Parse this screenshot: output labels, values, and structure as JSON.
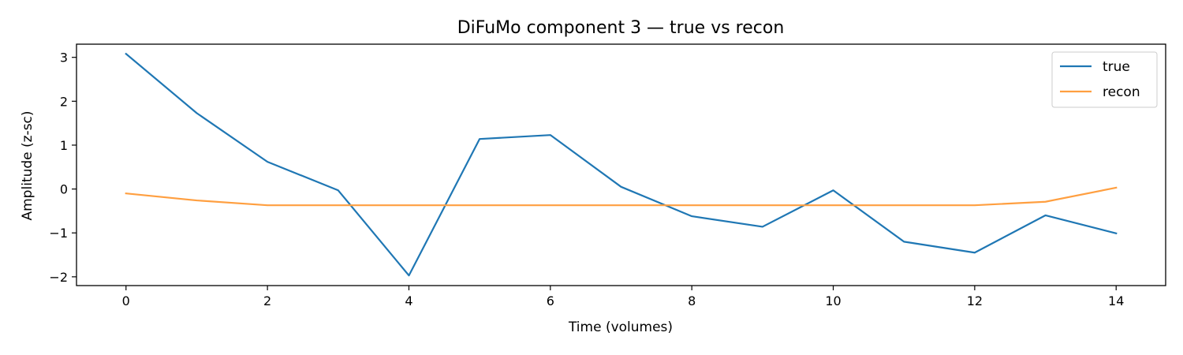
{
  "chart_data": {
    "type": "line",
    "title": "DiFuMo component 3 — true vs recon",
    "xlabel": "Time (volumes)",
    "ylabel": "Amplitude (z-sc)",
    "x": [
      0,
      1,
      2,
      3,
      4,
      5,
      6,
      7,
      8,
      9,
      10,
      11,
      12,
      13,
      14
    ],
    "xlim": [
      -0.7,
      14.7
    ],
    "ylim": [
      -2.2,
      3.3
    ],
    "xticks": [
      0,
      2,
      4,
      6,
      8,
      10,
      12,
      14
    ],
    "yticks": [
      -2,
      -1,
      0,
      1,
      2,
      3
    ],
    "grid": false,
    "legend_position": "top-right",
    "series": [
      {
        "name": "true",
        "color": "#1f77b4",
        "values": [
          3.08,
          1.73,
          0.62,
          -0.03,
          -1.97,
          1.14,
          1.23,
          0.05,
          -0.62,
          -0.86,
          -0.03,
          -1.2,
          -1.45,
          -0.6,
          -1.01
        ]
      },
      {
        "name": "recon",
        "color": "#ff9f40",
        "values": [
          -0.1,
          -0.26,
          -0.37,
          -0.37,
          -0.37,
          -0.37,
          -0.37,
          -0.37,
          -0.37,
          -0.37,
          -0.37,
          -0.37,
          -0.37,
          -0.29,
          0.03
        ]
      }
    ]
  }
}
